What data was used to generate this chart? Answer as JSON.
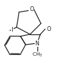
{
  "bg": "#ffffff",
  "lc": "#1a1a1a",
  "lw": 0.85,
  "fs": 5.8,
  "figsize": [
    0.94,
    0.96
  ],
  "dpi": 100,
  "xlim": [
    -1.5,
    8.5
  ],
  "ylim": [
    -2.5,
    6.5
  ]
}
